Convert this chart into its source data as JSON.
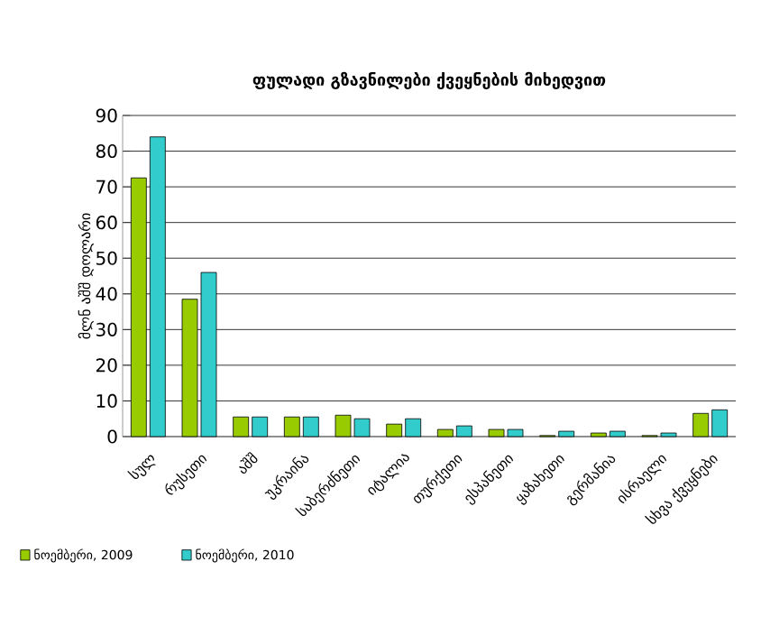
{
  "chart_data": {
    "type": "bar",
    "title": "ფულადი გზავნილები ქვეყნების მიხედვით",
    "ylabel": "მლნ აშშ დოლარი",
    "categories": [
      "სულ",
      "რუსეთი",
      "აშშ",
      "უკრაინა",
      "საბერძნეთი",
      "იტალია",
      "თურქეთი",
      "ესპანეთი",
      "ყაზახეთი",
      "გერმანია",
      "ისრაელი",
      "სხვა ქვეყნები"
    ],
    "series": [
      {
        "name": "ნოემბერი, 2009",
        "color": "#99cc00",
        "values": [
          72.5,
          38.5,
          5.5,
          5.5,
          6,
          3.5,
          2,
          2,
          0.3,
          1,
          0.3,
          6.5
        ]
      },
      {
        "name": "ნოემბერი, 2010",
        "color": "#33cccc",
        "values": [
          84,
          46,
          5.5,
          5.5,
          5,
          5,
          3,
          2,
          1.5,
          1.5,
          1,
          7.5
        ]
      }
    ],
    "ylim": [
      0,
      90
    ],
    "yticks": [
      0,
      10,
      20,
      30,
      40,
      50,
      60,
      70,
      80,
      90
    ],
    "grid": "y",
    "legend": "bottom left"
  }
}
